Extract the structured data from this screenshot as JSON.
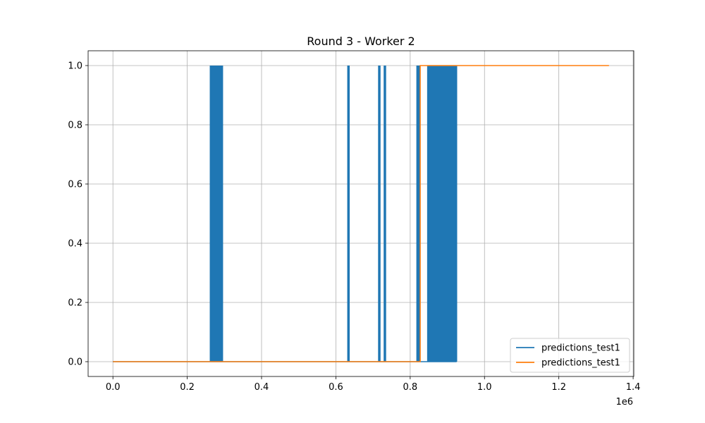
{
  "chart_data": {
    "type": "line",
    "title": "Round 3 - Worker 2",
    "xlabel": "",
    "ylabel": "",
    "x_offset_text": "1e6",
    "xlim": [
      -66750,
      1401750
    ],
    "ylim": [
      -0.05,
      1.05
    ],
    "x_ticks": [
      0,
      200000,
      400000,
      600000,
      800000,
      1000000,
      1200000,
      1400000
    ],
    "x_tick_labels": [
      "0.0",
      "0.2",
      "0.4",
      "0.6",
      "0.8",
      "1.0",
      "1.2",
      "1.4"
    ],
    "y_ticks": [
      0.0,
      0.2,
      0.4,
      0.6,
      0.8,
      1.0
    ],
    "y_tick_labels": [
      "0.0",
      "0.2",
      "0.4",
      "0.6",
      "0.8",
      "1.0"
    ],
    "grid": true,
    "legend_position": "bottom-right",
    "series": [
      {
        "name": "predictions_test1",
        "color": "#1f77b4",
        "x_range": [
          0,
          925000
        ],
        "high_segments": [
          [
            262000,
            295000
          ],
          [
            632000,
            633500
          ],
          [
            715000,
            716500
          ],
          [
            730000,
            731500
          ],
          [
            818000,
            825000
          ],
          [
            847000,
            925000
          ]
        ]
      },
      {
        "name": "predictions_test1",
        "color": "#ff7f0e",
        "x": [
          0,
          827000,
          827000,
          1335000
        ],
        "y": [
          0,
          0,
          1,
          1
        ]
      }
    ]
  }
}
